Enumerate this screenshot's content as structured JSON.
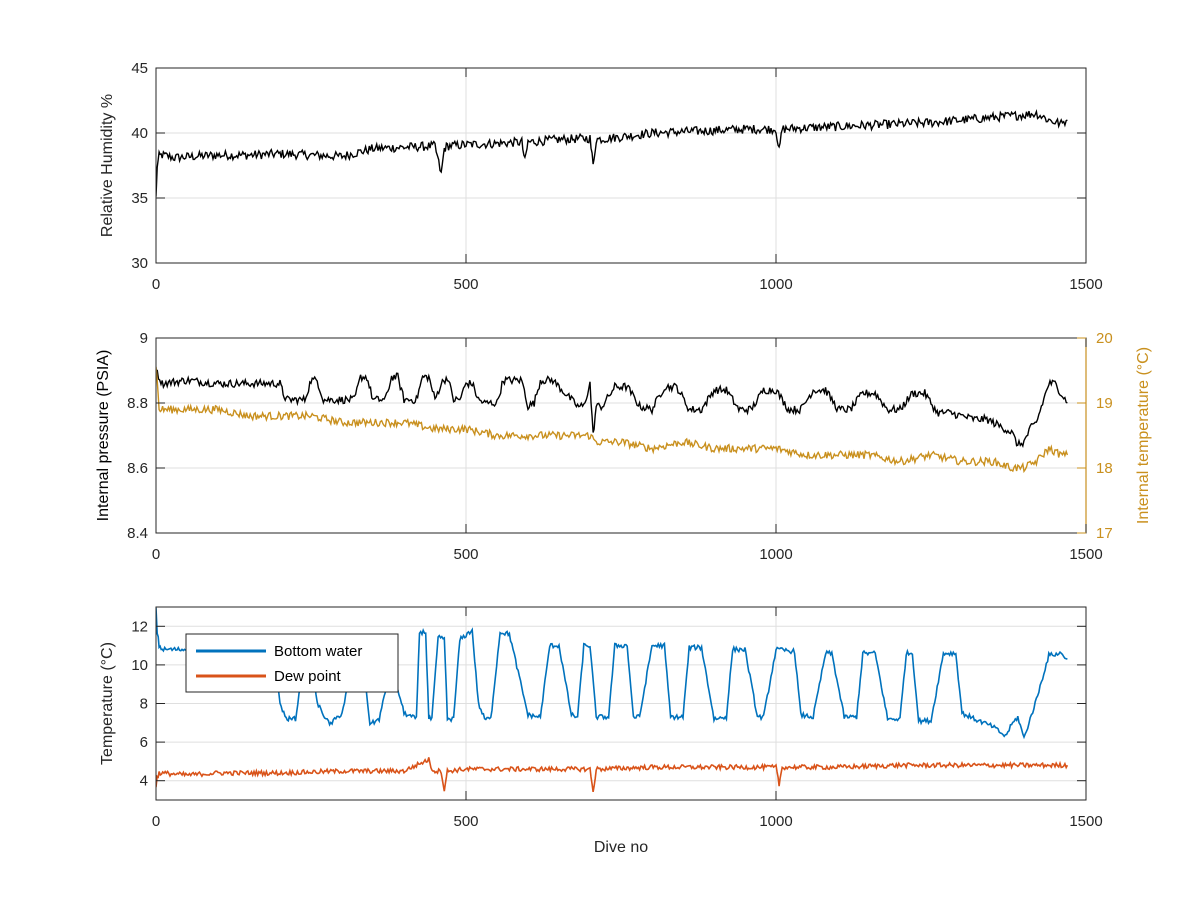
{
  "chart_data": [
    {
      "type": "line",
      "xlabel": "",
      "ylabel": "Relative Humidity %",
      "xlim": [
        0,
        1500
      ],
      "ylim": [
        30,
        45
      ],
      "xticks": [
        0,
        500,
        1000,
        1500
      ],
      "yticks": [
        30,
        35,
        40,
        45
      ],
      "grid": true,
      "series": [
        {
          "color": "#000000",
          "x": [
            0,
            2,
            5,
            10,
            30,
            60,
            100,
            150,
            200,
            250,
            300,
            350,
            400,
            450,
            460,
            465,
            470,
            500,
            550,
            590,
            595,
            600,
            650,
            700,
            705,
            710,
            750,
            800,
            850,
            900,
            950,
            1000,
            1005,
            1010,
            1050,
            1100,
            1150,
            1200,
            1250,
            1300,
            1350,
            1400,
            1420,
            1440,
            1460,
            1470
          ],
          "y": [
            35,
            37.5,
            38.2,
            38.3,
            38.1,
            38.2,
            38.3,
            38.3,
            38.4,
            38.3,
            38.2,
            38.8,
            38.9,
            39,
            36.8,
            38.8,
            39,
            39.1,
            39.2,
            39.3,
            37.8,
            39.3,
            39.5,
            39.6,
            37.5,
            39.5,
            39.7,
            40,
            40.1,
            40.2,
            40.3,
            40.3,
            38.6,
            40.3,
            40.4,
            40.5,
            40.6,
            40.7,
            40.8,
            41,
            41.2,
            41.4,
            41.5,
            41,
            40.7,
            41
          ]
        }
      ]
    },
    {
      "type": "line",
      "xlabel": "",
      "ylabel": "Internal pressure (PSIA)",
      "ylabel_right": "Internal temperature (°C)",
      "xlim": [
        0,
        1500
      ],
      "ylim": [
        8.4,
        9
      ],
      "ylim_right": [
        17,
        20
      ],
      "xticks": [
        0,
        500,
        1000,
        1500
      ],
      "yticks": [
        8.4,
        8.6,
        8.8,
        9
      ],
      "yticks_right": [
        17,
        18,
        19,
        20
      ],
      "right_axis_color": "#C9901E",
      "grid": true,
      "series": [
        {
          "axis": "left",
          "color": "#000000",
          "x": [
            0,
            10,
            50,
            100,
            150,
            200,
            205,
            210,
            240,
            250,
            260,
            270,
            320,
            330,
            340,
            350,
            370,
            380,
            390,
            400,
            420,
            430,
            440,
            450,
            460,
            470,
            480,
            490,
            500,
            510,
            520,
            530,
            550,
            560,
            590,
            600,
            610,
            620,
            640,
            680,
            690,
            700,
            705,
            710,
            720,
            740,
            760,
            780,
            800,
            820,
            840,
            860,
            880,
            900,
            920,
            940,
            960,
            980,
            1000,
            1020,
            1040,
            1060,
            1080,
            1100,
            1120,
            1140,
            1160,
            1180,
            1200,
            1220,
            1240,
            1260,
            1280,
            1300,
            1320,
            1340,
            1360,
            1380,
            1390,
            1400,
            1410,
            1420,
            1440,
            1450,
            1460,
            1470
          ],
          "y": [
            8.9,
            8.86,
            8.87,
            8.86,
            8.86,
            8.86,
            8.83,
            8.81,
            8.81,
            8.87,
            8.87,
            8.81,
            8.81,
            8.88,
            8.88,
            8.81,
            8.81,
            8.88,
            8.88,
            8.81,
            8.81,
            8.88,
            8.88,
            8.81,
            8.86,
            8.88,
            8.81,
            8.81,
            8.86,
            8.86,
            8.81,
            8.8,
            8.8,
            8.87,
            8.87,
            8.79,
            8.8,
            8.87,
            8.87,
            8.79,
            8.79,
            8.86,
            8.7,
            8.79,
            8.79,
            8.85,
            8.85,
            8.79,
            8.78,
            8.85,
            8.85,
            8.78,
            8.78,
            8.84,
            8.84,
            8.78,
            8.78,
            8.84,
            8.84,
            8.78,
            8.78,
            8.84,
            8.84,
            8.78,
            8.78,
            8.83,
            8.83,
            8.78,
            8.78,
            8.83,
            8.83,
            8.77,
            8.77,
            8.76,
            8.75,
            8.75,
            8.73,
            8.71,
            8.67,
            8.68,
            8.72,
            8.74,
            8.86,
            8.86,
            8.83,
            8.8
          ]
        },
        {
          "axis": "right",
          "color": "#C9901E",
          "x": [
            0,
            5,
            20,
            50,
            100,
            150,
            200,
            250,
            300,
            350,
            400,
            450,
            500,
            550,
            600,
            650,
            700,
            710,
            750,
            800,
            850,
            900,
            950,
            1000,
            1050,
            1100,
            1150,
            1200,
            1250,
            1300,
            1350,
            1380,
            1400,
            1420,
            1440,
            1460,
            1470
          ],
          "y": [
            19.6,
            18.9,
            18.9,
            18.9,
            18.9,
            18.8,
            18.8,
            18.8,
            18.7,
            18.7,
            18.7,
            18.6,
            18.6,
            18.5,
            18.5,
            18.5,
            18.5,
            18.4,
            18.4,
            18.3,
            18.4,
            18.3,
            18.3,
            18.3,
            18.2,
            18.2,
            18.2,
            18.1,
            18.2,
            18.1,
            18.1,
            18,
            18,
            18.1,
            18.3,
            18.2,
            18.2
          ]
        }
      ]
    },
    {
      "type": "line",
      "xlabel": "Dive no",
      "ylabel": "Temperature (°C)",
      "xlim": [
        0,
        1500
      ],
      "ylim": [
        3,
        13
      ],
      "xticks": [
        0,
        500,
        1000,
        1500
      ],
      "yticks": [
        4,
        6,
        8,
        10,
        12
      ],
      "grid": true,
      "legend_position": "top-left",
      "series": [
        {
          "name": "Bottom water",
          "color": "#0072BD",
          "x": [
            0,
            2,
            5,
            10,
            50,
            100,
            150,
            190,
            200,
            210,
            215,
            225,
            240,
            250,
            260,
            280,
            300,
            310,
            320,
            330,
            345,
            350,
            360,
            380,
            400,
            420,
            425,
            435,
            440,
            445,
            455,
            465,
            470,
            480,
            490,
            510,
            520,
            530,
            540,
            555,
            570,
            600,
            620,
            635,
            650,
            670,
            680,
            690,
            700,
            710,
            730,
            740,
            760,
            770,
            780,
            800,
            820,
            830,
            850,
            860,
            880,
            900,
            920,
            930,
            950,
            970,
            980,
            1000,
            1030,
            1040,
            1060,
            1080,
            1090,
            1110,
            1130,
            1140,
            1160,
            1180,
            1200,
            1210,
            1220,
            1230,
            1250,
            1270,
            1290,
            1300,
            1320,
            1350,
            1370,
            1380,
            1390,
            1400,
            1420,
            1440,
            1460,
            1470
          ],
          "y": [
            13,
            11.7,
            11,
            10.8,
            10.8,
            10.8,
            10.7,
            10.7,
            8,
            7.2,
            7.2,
            7.2,
            10.5,
            10.6,
            8,
            6.9,
            7.5,
            9,
            11,
            11,
            7,
            7,
            7.2,
            10,
            7.5,
            7.2,
            11.7,
            11.7,
            7.2,
            7.2,
            11.4,
            11.4,
            7.2,
            7.2,
            11.3,
            11.8,
            8,
            7.2,
            7.2,
            11.7,
            11.6,
            7.4,
            7.3,
            11,
            11,
            7.4,
            7.3,
            11,
            11,
            7.3,
            7.3,
            11,
            11,
            7.3,
            7.3,
            11,
            11,
            7.3,
            7.3,
            10.9,
            10.9,
            7.2,
            7.3,
            10.8,
            10.8,
            7.3,
            7.3,
            10.8,
            10.7,
            7.4,
            7.3,
            10.6,
            10.6,
            7.3,
            7.3,
            10.6,
            10.6,
            7.2,
            7.2,
            10.6,
            10.6,
            7.1,
            7.1,
            10.6,
            10.6,
            7.5,
            7.2,
            6.8,
            6.3,
            6.9,
            7.3,
            6.2,
            8.2,
            10.5,
            10.6,
            10.3
          ]
        },
        {
          "name": "Dew point",
          "color": "#D95319",
          "x": [
            0,
            2,
            5,
            50,
            100,
            200,
            300,
            400,
            440,
            445,
            450,
            460,
            465,
            470,
            500,
            600,
            700,
            705,
            710,
            800,
            900,
            1000,
            1005,
            1010,
            1100,
            1200,
            1300,
            1400,
            1470
          ],
          "y": [
            3.6,
            4.2,
            4.4,
            4.3,
            4.4,
            4.4,
            4.5,
            4.5,
            5.1,
            4.6,
            4.5,
            4.5,
            3.5,
            4.5,
            4.6,
            4.6,
            4.6,
            3.4,
            4.6,
            4.7,
            4.7,
            4.7,
            3.8,
            4.7,
            4.7,
            4.8,
            4.8,
            4.8,
            4.8
          ]
        }
      ]
    }
  ]
}
